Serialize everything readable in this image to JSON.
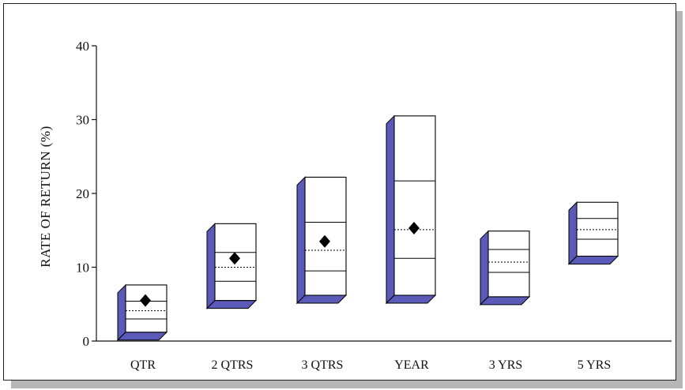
{
  "chart_data": {
    "type": "box",
    "title": "",
    "xlabel": "",
    "ylabel": "RATE OF RETURN  (%)",
    "ylim": [
      0,
      40
    ],
    "yticks": [
      0,
      10,
      20,
      30,
      40
    ],
    "grid": false,
    "colors": {
      "box_face": "#ffffff",
      "box_edge": "#000000",
      "shadow": "#5a5ab8",
      "marker": "#000000"
    },
    "categories": [
      "QTR",
      "2 QTRS",
      "3 QTRS",
      "YEAR",
      "3 YRS",
      "5 YRS"
    ],
    "series": [
      {
        "category": "QTR",
        "high": 7.6,
        "upper_quartile": 5.4,
        "median": 4.1,
        "lower_quartile": 3.0,
        "low": 1.2,
        "marker": 5.5
      },
      {
        "category": "2 QTRS",
        "high": 15.9,
        "upper_quartile": 12.0,
        "median": 10.0,
        "lower_quartile": 8.1,
        "low": 5.5,
        "marker": 11.2
      },
      {
        "category": "3 QTRS",
        "high": 22.2,
        "upper_quartile": 16.1,
        "median": 12.3,
        "lower_quartile": 9.5,
        "low": 6.2,
        "marker": 13.5
      },
      {
        "category": "YEAR",
        "high": 30.5,
        "upper_quartile": 21.7,
        "median": 15.1,
        "lower_quartile": 11.2,
        "low": 6.2,
        "marker": 15.3
      },
      {
        "category": "3 YRS",
        "high": 14.9,
        "upper_quartile": 12.4,
        "median": 10.7,
        "lower_quartile": 9.3,
        "low": 6.0,
        "marker": null
      },
      {
        "category": "5 YRS",
        "high": 18.8,
        "upper_quartile": 16.6,
        "median": 15.1,
        "lower_quartile": 13.8,
        "low": 11.5,
        "marker": null
      }
    ]
  }
}
